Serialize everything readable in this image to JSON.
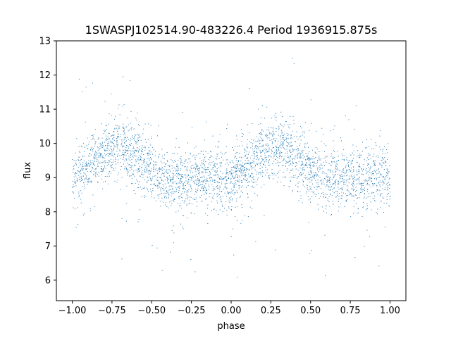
{
  "chart_data": {
    "type": "scatter",
    "title": "1SWASPJ102514.90-483226.4 Period 1936915.875s",
    "xlabel": "phase",
    "ylabel": "flux",
    "xlim": [
      -1.1,
      1.1
    ],
    "ylim": [
      5.4,
      13.0
    ],
    "xticks": [
      -1.0,
      -0.75,
      -0.5,
      -0.25,
      0.0,
      0.25,
      0.5,
      0.75,
      1.0
    ],
    "xtick_labels": [
      "−1.00",
      "−0.75",
      "−0.50",
      "−0.25",
      "0.00",
      "0.25",
      "0.50",
      "0.75",
      "1.00"
    ],
    "yticks": [
      6,
      7,
      8,
      9,
      10,
      11,
      12,
      13
    ],
    "ytick_labels": [
      "6",
      "7",
      "8",
      "9",
      "10",
      "11",
      "12",
      "13"
    ],
    "grid": false,
    "marker_color": "#1f77b4",
    "series": [
      {
        "x": [
          -1.0,
          -0.95,
          -0.9,
          -0.85,
          -0.8,
          -0.75,
          -0.7,
          -0.65,
          -0.6,
          -0.55,
          -0.5,
          -0.45,
          -0.4,
          -0.35,
          -0.3,
          -0.25,
          -0.2,
          -0.15,
          -0.1,
          -0.05,
          0.0,
          0.05,
          0.1,
          0.15,
          0.2,
          0.25,
          0.3,
          0.35,
          0.4,
          0.45,
          0.5,
          0.55,
          0.6,
          0.65,
          0.7,
          0.75,
          0.8,
          0.85,
          0.9,
          0.95,
          1.0
        ],
        "y": [
          9.0,
          9.2,
          9.3,
          9.5,
          9.7,
          9.8,
          9.9,
          9.8,
          9.6,
          9.4,
          9.2,
          9.0,
          8.9,
          8.9,
          8.9,
          8.9,
          9.0,
          9.0,
          9.0,
          9.0,
          9.0,
          9.2,
          9.3,
          9.5,
          9.7,
          9.8,
          9.9,
          9.8,
          9.6,
          9.4,
          9.2,
          9.0,
          8.9,
          8.9,
          8.9,
          8.9,
          9.0,
          9.0,
          9.0,
          9.0,
          9.0
        ]
      }
    ]
  }
}
